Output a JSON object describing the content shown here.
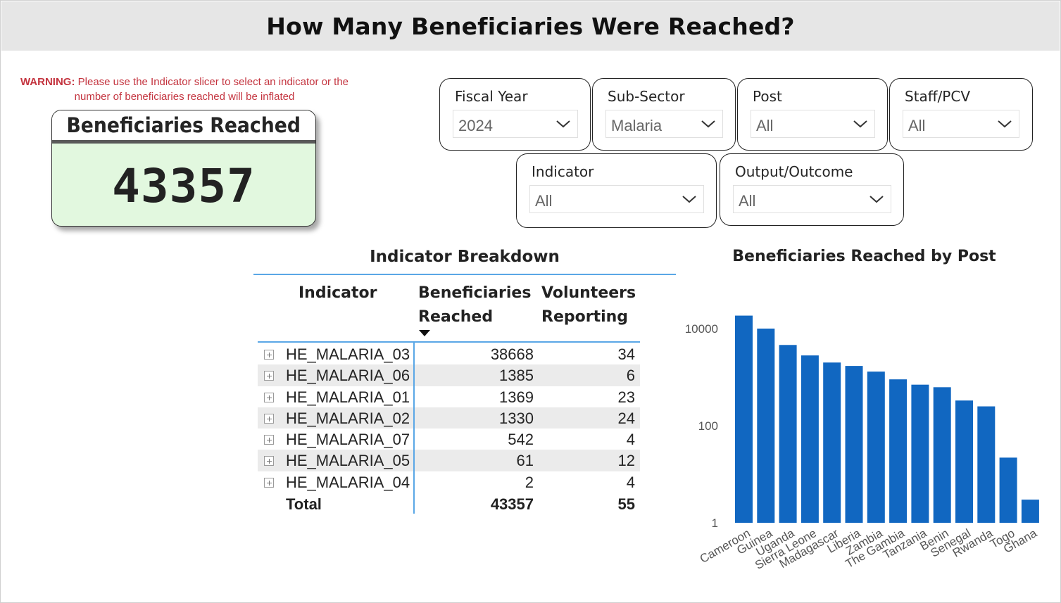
{
  "header": {
    "title": "How Many Beneficiaries Were Reached?"
  },
  "warning": {
    "label": "WARNING:",
    "text": "Please use the Indicator slicer to select an indicator or the number of beneficiaries reached will be inflated"
  },
  "kpi": {
    "title": "Beneficiaries Reached",
    "value": "43357"
  },
  "slicers": [
    {
      "label": "Fiscal Year",
      "value": "2024"
    },
    {
      "label": "Sub-Sector",
      "value": "Malaria"
    },
    {
      "label": "Post",
      "value": "All"
    },
    {
      "label": "Staff/PCV",
      "value": "All"
    },
    {
      "label": "Indicator",
      "value": "All"
    },
    {
      "label": "Output/Outcome",
      "value": "All"
    }
  ],
  "table": {
    "title": "Indicator Breakdown",
    "columns": {
      "indicator": "Indicator",
      "beneficiaries_1": "Beneficiaries",
      "beneficiaries_2": "Reached",
      "volunteers_1": "Volunteers",
      "volunteers_2": "Reporting"
    },
    "rows": [
      {
        "indicator": "HE_MALARIA_03",
        "beneficiaries": "38668",
        "volunteers": "34"
      },
      {
        "indicator": "HE_MALARIA_06",
        "beneficiaries": "1385",
        "volunteers": "6"
      },
      {
        "indicator": "HE_MALARIA_01",
        "beneficiaries": "1369",
        "volunteers": "23"
      },
      {
        "indicator": "HE_MALARIA_02",
        "beneficiaries": "1330",
        "volunteers": "24"
      },
      {
        "indicator": "HE_MALARIA_07",
        "beneficiaries": "542",
        "volunteers": "4"
      },
      {
        "indicator": "HE_MALARIA_05",
        "beneficiaries": "61",
        "volunteers": "12"
      },
      {
        "indicator": "HE_MALARIA_04",
        "beneficiaries": "2",
        "volunteers": "4"
      }
    ],
    "total": {
      "label": "Total",
      "beneficiaries": "43357",
      "volunteers": "55"
    }
  },
  "chart_data": {
    "type": "bar",
    "title": "Beneficiaries Reached by Post",
    "yscale": "log",
    "ylim": [
      1,
      20000
    ],
    "yticks": [
      1,
      100,
      10000
    ],
    "ytick_labels": [
      "1",
      "100",
      "10000"
    ],
    "categories": [
      "Cameroon",
      "Guinea",
      "Uganda",
      "Sierra Leone",
      "Madagascar",
      "Liberia",
      "Zambia",
      "The Gambia",
      "Tanzania",
      "Benin",
      "Senegal",
      "Rwanda",
      "Togo",
      "Ghana"
    ],
    "values": [
      18500,
      10000,
      4600,
      2800,
      2000,
      1700,
      1300,
      900,
      700,
      620,
      330,
      250,
      22,
      3
    ],
    "color": "#1167c1"
  }
}
